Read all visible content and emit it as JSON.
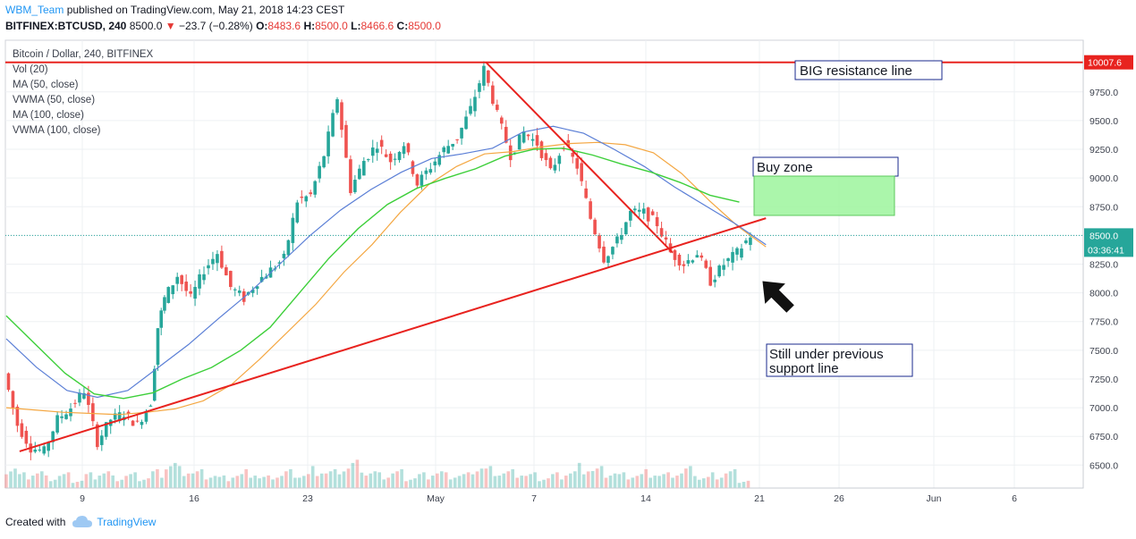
{
  "header": {
    "author": "WBM_Team",
    "published_text": "published on TradingView.com, May 21, 2018 14:23 CEST",
    "symbol": "BITFINEX:BTCUSD, 240",
    "price": "8500.0",
    "change": "−23.7 (−0.28%)",
    "o_label": "O:",
    "o_value": "8483.6",
    "h_label": "H:",
    "h_value": "8500.0",
    "l_label": "L:",
    "l_value": "8466.6",
    "c_label": "C:",
    "c_value": "8500.0"
  },
  "footer": {
    "created_with": "Created with",
    "brand": "TradingView"
  },
  "legend": {
    "title": "Bitcoin / Dollar, 240, BITFINEX",
    "studies": [
      "Vol (20)",
      "MA (50, close)",
      "VWMA (50, close)",
      "MA (100, close)",
      "VWMA (100, close)"
    ]
  },
  "annotations": {
    "resistance": "BIG resistance line",
    "buy_zone": "Buy zone",
    "still_under_1": "Still under previous",
    "still_under_2": "support line"
  },
  "price_labels": {
    "resistance": "10007.6",
    "last": "8500.0",
    "countdown": "03:36:41"
  },
  "colors": {
    "up": "#26a69a",
    "down": "#ef5350",
    "ma50": "#f4a742",
    "vwma50": "#5b7fd6",
    "ma100": "#7dd84a",
    "vwma100": "#3dcf3a",
    "trend": "#e8231f",
    "buy_zone_fill": "#9cf59c"
  },
  "chart_data": {
    "type": "candlestick",
    "y_ticks": [
      6500,
      6750,
      7000,
      7250,
      7500,
      7750,
      8000,
      8250,
      8500,
      8750,
      9000,
      9250,
      9500,
      9750
    ],
    "x_ticks": [
      "9",
      "16",
      "23",
      "May",
      "7",
      "14",
      "21",
      "26",
      "Jun",
      "6"
    ],
    "ylim": [
      6300,
      10200
    ],
    "resistance_level": 10007.6,
    "last_price": 8500.0,
    "price_path": [
      [
        0,
        7300
      ],
      [
        1,
        6850
      ],
      [
        2,
        6650
      ],
      [
        3,
        6620
      ],
      [
        4,
        6900
      ],
      [
        5,
        7000
      ],
      [
        6,
        7150
      ],
      [
        7,
        6700
      ],
      [
        8,
        6900
      ],
      [
        9,
        6950
      ],
      [
        10,
        6850
      ],
      [
        11,
        7050
      ],
      [
        11.5,
        7700
      ],
      [
        12,
        7950
      ],
      [
        13,
        8150
      ],
      [
        14,
        7950
      ],
      [
        15,
        8200
      ],
      [
        16,
        8350
      ],
      [
        17,
        8050
      ],
      [
        18,
        7950
      ],
      [
        19,
        8100
      ],
      [
        20,
        8200
      ],
      [
        21,
        8300
      ],
      [
        22,
        8800
      ],
      [
        23,
        8850
      ],
      [
        24,
        9200
      ],
      [
        25,
        9700
      ],
      [
        26,
        8900
      ],
      [
        27,
        9150
      ],
      [
        28,
        9300
      ],
      [
        29,
        9150
      ],
      [
        30,
        9300
      ],
      [
        31,
        8950
      ],
      [
        32,
        9100
      ],
      [
        33,
        9250
      ],
      [
        34,
        9350
      ],
      [
        35,
        9600
      ],
      [
        36,
        9950
      ],
      [
        37,
        9550
      ],
      [
        38,
        9200
      ],
      [
        39,
        9400
      ],
      [
        40,
        9300
      ],
      [
        41,
        9050
      ],
      [
        42,
        9300
      ],
      [
        43,
        9100
      ],
      [
        44,
        8650
      ],
      [
        45,
        8300
      ],
      [
        46,
        8450
      ],
      [
        47,
        8700
      ],
      [
        48,
        8700
      ],
      [
        49,
        8600
      ],
      [
        50,
        8350
      ],
      [
        51,
        8250
      ],
      [
        52,
        8350
      ],
      [
        53,
        8100
      ],
      [
        54,
        8250
      ],
      [
        55,
        8350
      ],
      [
        56,
        8500
      ]
    ],
    "volume": [
      8,
      5,
      6,
      4,
      5,
      3,
      5,
      6,
      4,
      5,
      4,
      6,
      9,
      7,
      6,
      5,
      4,
      5,
      6,
      4,
      5,
      6,
      5,
      7,
      6,
      8,
      9,
      6,
      5,
      6,
      4,
      5,
      6,
      5,
      5,
      8,
      7,
      6,
      6,
      5,
      4,
      5,
      6,
      8,
      7,
      6,
      5,
      5,
      6,
      5,
      6,
      7,
      4,
      5,
      6,
      3
    ],
    "ma50": [
      7000,
      6980,
      6960,
      6950,
      6940,
      6960,
      6990,
      7060,
      7200,
      7420,
      7660,
      7900,
      8180,
      8420,
      8700,
      8940,
      9100,
      9210,
      9230,
      9270,
      9300,
      9310,
      9290,
      9220,
      9040,
      8800,
      8580,
      8400
    ],
    "vwma50": [
      7600,
      7350,
      7150,
      7090,
      7150,
      7350,
      7550,
      7780,
      8000,
      8250,
      8500,
      8720,
      8900,
      9050,
      9170,
      9210,
      9260,
      9400,
      9450,
      9390,
      9250,
      9100,
      8920,
      8760,
      8600,
      8420
    ],
    "ma100": [
      7800,
      7550,
      7300,
      7120,
      7080,
      7130,
      7250,
      7350,
      7500,
      7700,
      8000,
      8300,
      8560,
      8770,
      8910,
      9000,
      9080,
      9190,
      9250,
      9260,
      9200,
      9120,
      9050,
      8960,
      8850,
      8790
    ],
    "trendlines": [
      {
        "name": "support",
        "from": [
          1,
          6620
        ],
        "to": [
          57,
          8650
        ]
      },
      {
        "name": "down",
        "from": [
          36,
          10007
        ],
        "to": [
          50,
          8350
        ]
      }
    ]
  }
}
